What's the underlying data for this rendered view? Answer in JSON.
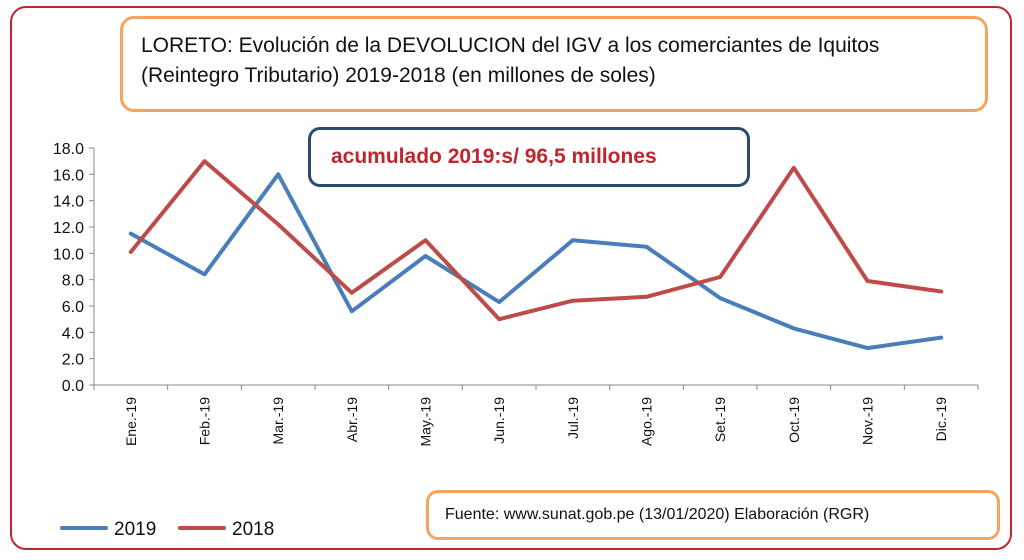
{
  "title": {
    "line1": "LORETO: Evolución de la DEVOLUCION del IGV a los comerciantes de Iquitos",
    "line2": "(Reintegro Tributario) 2019-2018 (en millones de soles)"
  },
  "callout": "acumulado 2019:s/ 96,5 millones",
  "source": "Fuente: www.sunat.gob.pe (13/01/2020)   Elaboración (RGR)",
  "colors": {
    "series_2019": "#4a7ebb",
    "series_2018": "#be4b48",
    "frame": "#c0262d",
    "boxes": "#f4a460",
    "callout_border": "#2c4a6e"
  },
  "chart_data": {
    "type": "line",
    "categories": [
      "Ene.-19",
      "Feb.-19",
      "Mar.-19",
      "Abr.-19",
      "May.-19",
      "Jun.-19",
      "Jul.-19",
      "Ago.-19",
      "Set.-19",
      "Oct.-19",
      "Nov.-19",
      "Dic.-19"
    ],
    "series": [
      {
        "name": "2019",
        "values": [
          11.5,
          8.4,
          16.0,
          5.6,
          9.8,
          6.3,
          11.0,
          10.5,
          6.6,
          4.3,
          2.8,
          3.6
        ]
      },
      {
        "name": "2018",
        "values": [
          10.1,
          17.0,
          12.2,
          7.0,
          11.0,
          5.0,
          6.4,
          6.7,
          8.2,
          16.5,
          7.9,
          7.1
        ]
      }
    ],
    "ylim": [
      0,
      18
    ],
    "yticks": [
      "0.0",
      "2.0",
      "4.0",
      "6.0",
      "8.0",
      "10.0",
      "12.0",
      "14.0",
      "16.0",
      "18.0"
    ],
    "grid": false,
    "legend": "bottom-left"
  }
}
